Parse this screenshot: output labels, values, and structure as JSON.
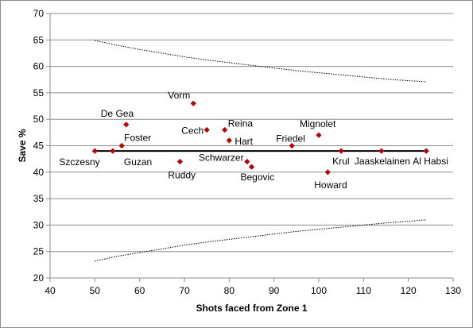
{
  "chart_data": {
    "type": "scatter",
    "title": "",
    "xlabel": "Shots faced from Zone 1",
    "ylabel": "Save %",
    "xlim": [
      40,
      130
    ],
    "ylim": [
      20,
      70
    ],
    "x_ticks": [
      "40",
      "50",
      "60",
      "70",
      "80",
      "90",
      "100",
      "110",
      "120",
      "130"
    ],
    "y_ticks": [
      "20",
      "25",
      "30",
      "35",
      "40",
      "45",
      "50",
      "55",
      "60",
      "65",
      "70"
    ],
    "grid": "horizontal",
    "legend": "none",
    "colors": {
      "marker": "#c00000",
      "gridline": "#8c8c8c",
      "mean_line": "#000000",
      "band": "#000000"
    },
    "points": [
      {
        "name": "Szczesny",
        "x": 50,
        "y": 44
      },
      {
        "name": "Guzan",
        "x": 54,
        "y": 44
      },
      {
        "name": "Foster",
        "x": 56,
        "y": 45
      },
      {
        "name": "De Gea",
        "x": 57,
        "y": 49
      },
      {
        "name": "Ruddy",
        "x": 69,
        "y": 42
      },
      {
        "name": "Vorm",
        "x": 72,
        "y": 53
      },
      {
        "name": "Cech",
        "x": 75,
        "y": 48
      },
      {
        "name": "Reina",
        "x": 79,
        "y": 48
      },
      {
        "name": "Hart",
        "x": 80,
        "y": 46
      },
      {
        "name": "Schwarzer",
        "x": 84,
        "y": 42
      },
      {
        "name": "Begovic",
        "x": 85,
        "y": 41
      },
      {
        "name": "Friedel",
        "x": 94,
        "y": 45
      },
      {
        "name": "Mignolet",
        "x": 100,
        "y": 47
      },
      {
        "name": "Howard",
        "x": 102,
        "y": 40
      },
      {
        "name": "Krul",
        "x": 105,
        "y": 44
      },
      {
        "name": "Jaaskelainen",
        "x": 114,
        "y": 44
      },
      {
        "name": "Al Habsi",
        "x": 124,
        "y": 44
      }
    ],
    "mean_line": {
      "x": [
        50,
        124
      ],
      "y": 44
    },
    "upper_band": {
      "x": [
        50,
        55,
        60,
        65,
        70,
        75,
        80,
        85,
        90,
        95,
        100,
        105,
        110,
        115,
        120,
        124
      ],
      "y": [
        64.9,
        64.0,
        63.2,
        62.5,
        61.8,
        61.2,
        60.7,
        60.2,
        59.7,
        59.2,
        58.8,
        58.4,
        58.0,
        57.6,
        57.3,
        57.1
      ]
    },
    "lower_band": {
      "x": [
        50,
        55,
        60,
        65,
        70,
        75,
        80,
        85,
        90,
        95,
        100,
        105,
        110,
        115,
        120,
        124
      ],
      "y": [
        23.2,
        24.1,
        24.8,
        25.5,
        26.2,
        26.8,
        27.3,
        27.8,
        28.3,
        28.8,
        29.2,
        29.6,
        30.0,
        30.4,
        30.7,
        31.0
      ]
    }
  }
}
